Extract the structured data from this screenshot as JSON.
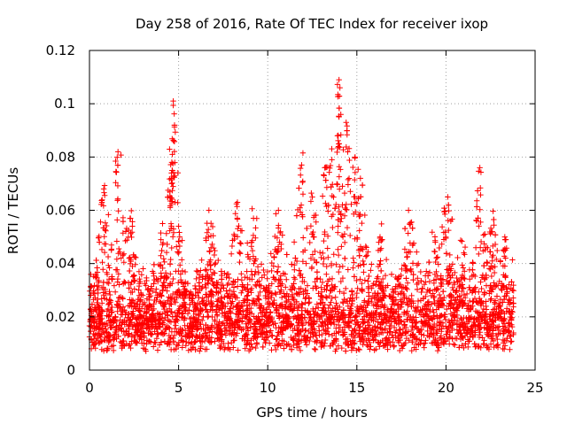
{
  "chart_data": {
    "type": "scatter",
    "title": "Day 258 of 2016, Rate Of TEC Index for receiver ixop",
    "xlabel": "GPS time / hours",
    "ylabel": "ROTI / TECUs",
    "xlim": [
      0,
      25
    ],
    "ylim": [
      0,
      0.12
    ],
    "xticks": [
      0,
      5,
      10,
      15,
      20,
      25
    ],
    "xtick_labels": [
      "0",
      "5",
      "10",
      "15",
      "20",
      "25"
    ],
    "yticks": [
      0,
      0.02,
      0.04,
      0.06,
      0.08,
      0.1,
      0.12
    ],
    "ytick_labels": [
      "0",
      "0.02",
      "0.04",
      "0.06",
      "0.08",
      "0.1",
      "0.12"
    ],
    "grid": true,
    "marker": "+",
    "color": "#ff0000",
    "series": [
      {
        "name": "ROTI",
        "approx_point_count": 9000,
        "x_range": [
          0,
          23.8
        ],
        "typical_band": [
          0.006,
          0.03
        ],
        "peaks": [
          {
            "x": 0.8,
            "y": 0.068
          },
          {
            "x": 1.6,
            "y": 0.082
          },
          {
            "x": 2.3,
            "y": 0.057
          },
          {
            "x": 4.1,
            "y": 0.055
          },
          {
            "x": 4.7,
            "y": 0.101
          },
          {
            "x": 4.65,
            "y": 0.081
          },
          {
            "x": 4.6,
            "y": 0.074
          },
          {
            "x": 5.0,
            "y": 0.054
          },
          {
            "x": 6.7,
            "y": 0.06
          },
          {
            "x": 8.3,
            "y": 0.063
          },
          {
            "x": 9.2,
            "y": 0.057
          },
          {
            "x": 10.6,
            "y": 0.06
          },
          {
            "x": 11.9,
            "y": 0.077
          },
          {
            "x": 12.5,
            "y": 0.065
          },
          {
            "x": 13.2,
            "y": 0.076
          },
          {
            "x": 13.6,
            "y": 0.079
          },
          {
            "x": 14.0,
            "y": 0.109
          },
          {
            "x": 14.05,
            "y": 0.106
          },
          {
            "x": 14.1,
            "y": 0.096
          },
          {
            "x": 14.4,
            "y": 0.093
          },
          {
            "x": 14.9,
            "y": 0.08
          },
          {
            "x": 15.2,
            "y": 0.072
          },
          {
            "x": 16.3,
            "y": 0.05
          },
          {
            "x": 17.9,
            "y": 0.06
          },
          {
            "x": 19.4,
            "y": 0.048
          },
          {
            "x": 20.1,
            "y": 0.065
          },
          {
            "x": 21.0,
            "y": 0.044
          },
          {
            "x": 21.9,
            "y": 0.076
          },
          {
            "x": 22.6,
            "y": 0.052
          },
          {
            "x": 23.3,
            "y": 0.05
          }
        ]
      }
    ]
  }
}
